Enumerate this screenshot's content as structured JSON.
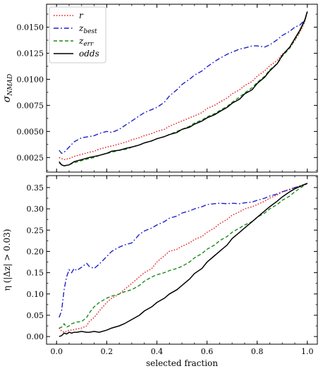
{
  "chart_data": [
    {
      "type": "line",
      "ylabel": "σ_NMAD",
      "xlim": [
        -0.04,
        1.04
      ],
      "ylim": [
        0.0011,
        0.0172
      ],
      "xticks": [
        0.0,
        0.2,
        0.4,
        0.6,
        0.8,
        1.0
      ],
      "yticks": [
        0.0025,
        0.005,
        0.0075,
        0.01,
        0.0125,
        0.015
      ],
      "ytick_labels": [
        "0.0025",
        "0.0050",
        "0.0075",
        "0.0100",
        "0.0125",
        "0.0150"
      ],
      "legend_position": "top-left",
      "x": [
        0.01,
        0.02,
        0.03,
        0.05,
        0.07,
        0.1,
        0.13,
        0.15,
        0.17,
        0.2,
        0.22,
        0.25,
        0.28,
        0.3,
        0.33,
        0.35,
        0.38,
        0.4,
        0.43,
        0.45,
        0.48,
        0.5,
        0.53,
        0.55,
        0.58,
        0.6,
        0.63,
        0.65,
        0.68,
        0.7,
        0.73,
        0.75,
        0.78,
        0.8,
        0.83,
        0.85,
        0.88,
        0.9,
        0.93,
        0.95,
        0.97,
        0.99,
        1.0
      ],
      "series": [
        {
          "name": "r",
          "color": "#e41a1c",
          "dash": "dotted",
          "values": [
            0.0025,
            0.0024,
            0.0023,
            0.0024,
            0.0026,
            0.0028,
            0.003,
            0.0031,
            0.0033,
            0.0035,
            0.0036,
            0.0038,
            0.004,
            0.0042,
            0.0044,
            0.0046,
            0.0048,
            0.005,
            0.0052,
            0.0055,
            0.0058,
            0.006,
            0.0063,
            0.0065,
            0.0068,
            0.0072,
            0.0075,
            0.0078,
            0.0082,
            0.0086,
            0.009,
            0.0094,
            0.0098,
            0.0103,
            0.0108,
            0.0113,
            0.0118,
            0.0124,
            0.013,
            0.0137,
            0.0145,
            0.0155,
            0.0165
          ]
        },
        {
          "name": "z_best",
          "color": "#1f1fcc",
          "dash": "dashdot",
          "values": [
            0.0032,
            0.0029,
            0.003,
            0.0035,
            0.004,
            0.0044,
            0.0045,
            0.0046,
            0.0048,
            0.005,
            0.0049,
            0.0052,
            0.0057,
            0.006,
            0.0065,
            0.0068,
            0.0071,
            0.0073,
            0.0078,
            0.0084,
            0.009,
            0.0095,
            0.01,
            0.0104,
            0.0108,
            0.0112,
            0.0117,
            0.012,
            0.0124,
            0.0126,
            0.0129,
            0.013,
            0.0132,
            0.0132,
            0.0131,
            0.0133,
            0.0138,
            0.0142,
            0.0146,
            0.015,
            0.0152,
            0.0157,
            0.0165
          ]
        },
        {
          "name": "z_err",
          "color": "#1a8a1a",
          "dash": "dashed",
          "values": [
            0.002,
            0.0018,
            0.0017,
            0.0018,
            0.002,
            0.0022,
            0.0024,
            0.0025,
            0.0027,
            0.0029,
            0.003,
            0.0032,
            0.0033,
            0.0035,
            0.0037,
            0.0039,
            0.0041,
            0.0043,
            0.0045,
            0.0047,
            0.005,
            0.0052,
            0.0055,
            0.0058,
            0.0061,
            0.0064,
            0.0067,
            0.007,
            0.0074,
            0.0078,
            0.0083,
            0.0087,
            0.0092,
            0.0097,
            0.0103,
            0.0109,
            0.0115,
            0.0122,
            0.013,
            0.0138,
            0.0146,
            0.0156,
            0.0165
          ]
        },
        {
          "name": "odds",
          "color": "#000000",
          "dash": "solid",
          "values": [
            0.0021,
            0.0018,
            0.0017,
            0.0018,
            0.0021,
            0.0023,
            0.0025,
            0.0026,
            0.0027,
            0.0029,
            0.0031,
            0.0032,
            0.0034,
            0.0035,
            0.0037,
            0.0039,
            0.0041,
            0.0043,
            0.0045,
            0.0047,
            0.0049,
            0.0052,
            0.0054,
            0.0057,
            0.006,
            0.0063,
            0.0066,
            0.0069,
            0.0073,
            0.0077,
            0.0081,
            0.0086,
            0.009,
            0.0096,
            0.0102,
            0.0108,
            0.0115,
            0.0123,
            0.0131,
            0.0139,
            0.0147,
            0.0157,
            0.0165
          ]
        }
      ]
    },
    {
      "type": "line",
      "xlabel": "selected fraction",
      "ylabel": "η (|Δz| > 0.03)",
      "xlim": [
        -0.04,
        1.04
      ],
      "ylim": [
        -0.018,
        0.378
      ],
      "xticks": [
        0.0,
        0.2,
        0.4,
        0.6,
        0.8,
        1.0
      ],
      "xtick_labels": [
        "0.0",
        "0.2",
        "0.4",
        "0.6",
        "0.8",
        "1.0"
      ],
      "yticks": [
        0.0,
        0.05,
        0.1,
        0.15,
        0.2,
        0.25,
        0.3,
        0.35
      ],
      "ytick_labels": [
        "0.00",
        "0.05",
        "0.10",
        "0.15",
        "0.20",
        "0.25",
        "0.30",
        "0.35"
      ],
      "x": [
        0.01,
        0.02,
        0.03,
        0.04,
        0.05,
        0.06,
        0.07,
        0.08,
        0.1,
        0.12,
        0.13,
        0.15,
        0.17,
        0.2,
        0.22,
        0.25,
        0.27,
        0.3,
        0.33,
        0.35,
        0.38,
        0.4,
        0.43,
        0.45,
        0.48,
        0.5,
        0.53,
        0.55,
        0.58,
        0.6,
        0.63,
        0.65,
        0.68,
        0.7,
        0.73,
        0.75,
        0.78,
        0.8,
        0.83,
        0.85,
        0.88,
        0.9,
        0.93,
        0.95,
        0.98,
        1.0
      ],
      "series": [
        {
          "name": "r",
          "color": "#e41a1c",
          "dash": "dotted",
          "values": [
            0.02,
            0.013,
            0.01,
            0.012,
            0.015,
            0.015,
            0.016,
            0.018,
            0.02,
            0.025,
            0.035,
            0.045,
            0.06,
            0.08,
            0.09,
            0.1,
            0.11,
            0.125,
            0.14,
            0.15,
            0.16,
            0.175,
            0.19,
            0.2,
            0.205,
            0.212,
            0.22,
            0.228,
            0.235,
            0.245,
            0.255,
            0.265,
            0.275,
            0.285,
            0.293,
            0.3,
            0.305,
            0.31,
            0.318,
            0.325,
            0.333,
            0.34,
            0.346,
            0.35,
            0.356,
            0.36
          ]
        },
        {
          "name": "z_best",
          "color": "#1f1fcc",
          "dash": "dashdot",
          "values": [
            0.045,
            0.06,
            0.11,
            0.14,
            0.157,
            0.15,
            0.16,
            0.155,
            0.163,
            0.172,
            0.165,
            0.16,
            0.17,
            0.188,
            0.2,
            0.21,
            0.215,
            0.22,
            0.24,
            0.248,
            0.255,
            0.262,
            0.27,
            0.278,
            0.283,
            0.29,
            0.295,
            0.3,
            0.305,
            0.31,
            0.312,
            0.313,
            0.312,
            0.313,
            0.312,
            0.314,
            0.316,
            0.32,
            0.325,
            0.33,
            0.335,
            0.34,
            0.345,
            0.35,
            0.355,
            0.36
          ]
        },
        {
          "name": "z_err",
          "color": "#1a8a1a",
          "dash": "dashed",
          "values": [
            0.02,
            0.022,
            0.03,
            0.022,
            0.025,
            0.03,
            0.032,
            0.034,
            0.035,
            0.045,
            0.055,
            0.07,
            0.08,
            0.09,
            0.095,
            0.1,
            0.105,
            0.11,
            0.12,
            0.13,
            0.14,
            0.145,
            0.15,
            0.155,
            0.16,
            0.165,
            0.175,
            0.185,
            0.195,
            0.205,
            0.215,
            0.225,
            0.235,
            0.245,
            0.255,
            0.262,
            0.27,
            0.28,
            0.29,
            0.3,
            0.31,
            0.32,
            0.33,
            0.34,
            0.352,
            0.36
          ]
        },
        {
          "name": "odds",
          "color": "#000000",
          "dash": "solid",
          "values": [
            0.0,
            0.002,
            0.008,
            0.006,
            0.01,
            0.008,
            0.01,
            0.01,
            0.012,
            0.01,
            0.01,
            0.012,
            0.01,
            0.015,
            0.02,
            0.025,
            0.03,
            0.04,
            0.05,
            0.06,
            0.07,
            0.08,
            0.09,
            0.1,
            0.11,
            0.12,
            0.135,
            0.148,
            0.16,
            0.175,
            0.19,
            0.2,
            0.215,
            0.23,
            0.245,
            0.255,
            0.27,
            0.28,
            0.295,
            0.305,
            0.318,
            0.328,
            0.34,
            0.347,
            0.355,
            0.36
          ]
        }
      ]
    }
  ],
  "legend": {
    "entries": [
      {
        "label": "r",
        "sub": "",
        "color": "#e41a1c",
        "dash": "dotted"
      },
      {
        "label": "z",
        "sub": "best",
        "color": "#1f1fcc",
        "dash": "dashdot"
      },
      {
        "label": "z",
        "sub": "err",
        "color": "#1a8a1a",
        "dash": "dashed"
      },
      {
        "label": "odds",
        "sub": "",
        "color": "#000000",
        "dash": "solid"
      }
    ]
  },
  "top_ylabel_parts": {
    "sym": "σ",
    "sub": "NMAD"
  }
}
